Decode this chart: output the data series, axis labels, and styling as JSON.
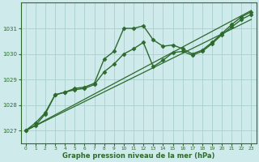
{
  "bg_color": "#ceeaea",
  "line_color": "#2d6a2d",
  "grid_color": "#aacfcf",
  "xlabel": "Graphe pression niveau de la mer (hPa)",
  "xlim": [
    -0.5,
    23.5
  ],
  "ylim": [
    1026.5,
    1032.0
  ],
  "yticks": [
    1027,
    1028,
    1029,
    1030,
    1031
  ],
  "xticks": [
    0,
    1,
    2,
    3,
    4,
    5,
    6,
    7,
    8,
    9,
    10,
    11,
    12,
    13,
    14,
    15,
    16,
    17,
    18,
    19,
    20,
    21,
    22,
    23
  ],
  "series": [
    {
      "x": [
        0,
        1,
        2,
        3,
        4,
        5,
        6,
        7,
        8,
        9,
        10,
        11,
        12,
        13,
        14,
        15,
        16,
        17,
        18,
        19,
        20,
        21,
        22,
        23
      ],
      "y": [
        1027.0,
        1027.3,
        1027.7,
        1028.4,
        1028.5,
        1028.65,
        1028.7,
        1028.85,
        1029.8,
        1030.1,
        1031.0,
        1031.0,
        1031.1,
        1030.55,
        1030.3,
        1030.35,
        1030.2,
        1030.0,
        1030.15,
        1030.45,
        1030.8,
        1031.15,
        1031.45,
        1031.65
      ],
      "marker": "D",
      "ms": 2.5,
      "lw": 1.0
    },
    {
      "x": [
        0,
        1,
        2,
        3,
        4,
        5,
        6,
        7,
        8,
        9,
        10,
        11,
        12,
        13,
        14,
        15,
        16,
        17,
        18,
        19,
        20,
        21,
        22,
        23
      ],
      "y": [
        1027.0,
        1027.2,
        1027.65,
        1028.4,
        1028.5,
        1028.6,
        1028.65,
        1028.8,
        1029.3,
        1029.6,
        1030.0,
        1030.2,
        1030.45,
        1029.5,
        1029.75,
        1030.05,
        1030.1,
        1029.95,
        1030.1,
        1030.4,
        1030.75,
        1031.05,
        1031.35,
        1031.55
      ],
      "marker": "D",
      "ms": 2.5,
      "lw": 1.0
    },
    {
      "x": [
        0,
        23
      ],
      "y": [
        1027.0,
        1031.7
      ],
      "marker": null,
      "ms": 0,
      "lw": 0.9
    },
    {
      "x": [
        0,
        23
      ],
      "y": [
        1027.0,
        1031.35
      ],
      "marker": null,
      "ms": 0,
      "lw": 0.9
    }
  ]
}
